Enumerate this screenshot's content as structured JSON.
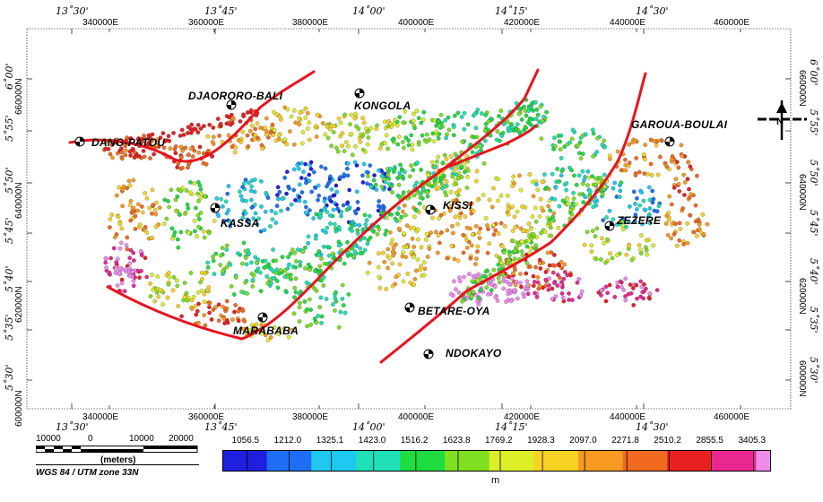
{
  "top_lon_labels": [
    "13˚30'",
    "13˚45'",
    "14˚00'",
    "14˚15'",
    "14˚30'"
  ],
  "top_utm_labels": [
    "340000E",
    "360000E",
    "380000E",
    "400000E",
    "420000E",
    "440000E",
    "460000E"
  ],
  "bottom_utm_labels": [
    "340000E",
    "360000E",
    "380000E",
    "400000E",
    "420000E",
    "440000E",
    "460000E"
  ],
  "bottom_lon_labels": [
    "13˚30'",
    "13˚45'",
    "14˚00'",
    "14˚15'",
    "14˚30'"
  ],
  "left_lat_labels": [
    "6˚00'",
    "5˚55'",
    "5˚50'",
    "5˚45'",
    "5˚40'",
    "5˚35'",
    "5˚30'"
  ],
  "left_utm_labels": [
    "660000N",
    "640000N",
    "620000N",
    "600000N"
  ],
  "right_lat_labels": [
    "6˚00'",
    "5˚55'",
    "5˚50'",
    "5˚45'",
    "5˚40'",
    "5˚35'",
    "5˚30'"
  ],
  "right_utm_labels": [
    "660000N",
    "640000N",
    "620000N",
    "600000N"
  ],
  "places": {
    "djaororo_bali": "DJAORORO-BALI",
    "kongola": "KONGOLA",
    "dang_patou": "DANG-PATOU",
    "garoua_boulai": "GAROUA-BOULAI",
    "kassa": "KASSA",
    "kissi": "KISSI",
    "zezere": "ZEZERE",
    "betare_oya": "BETARE-OYA",
    "marabaha": "MARABABA",
    "ndokayo": "NDOKAYO"
  },
  "scale_bar": {
    "labels": [
      "10000",
      "0",
      "10000",
      "20000"
    ],
    "unit": "(meters)",
    "projection": "WGS 84 / UTM zone 33N"
  },
  "color_legend": {
    "values": [
      "1056.5",
      "1212.0",
      "1325.1",
      "1423.0",
      "1516.2",
      "1623.8",
      "1769.2",
      "1928.3",
      "2097.0",
      "2271.8",
      "2510.2",
      "2855.5",
      "3405.3"
    ],
    "unit": "m",
    "colors": [
      "#1f1fe0",
      "#1e6ff5",
      "#1ec8f0",
      "#1fe0b8",
      "#1fdc40",
      "#7ee020",
      "#dcee28",
      "#f7d224",
      "#f79a22",
      "#f06a20",
      "#e82020",
      "#e82890",
      "#ee8cee"
    ]
  },
  "faults_color": "#e8141e"
}
